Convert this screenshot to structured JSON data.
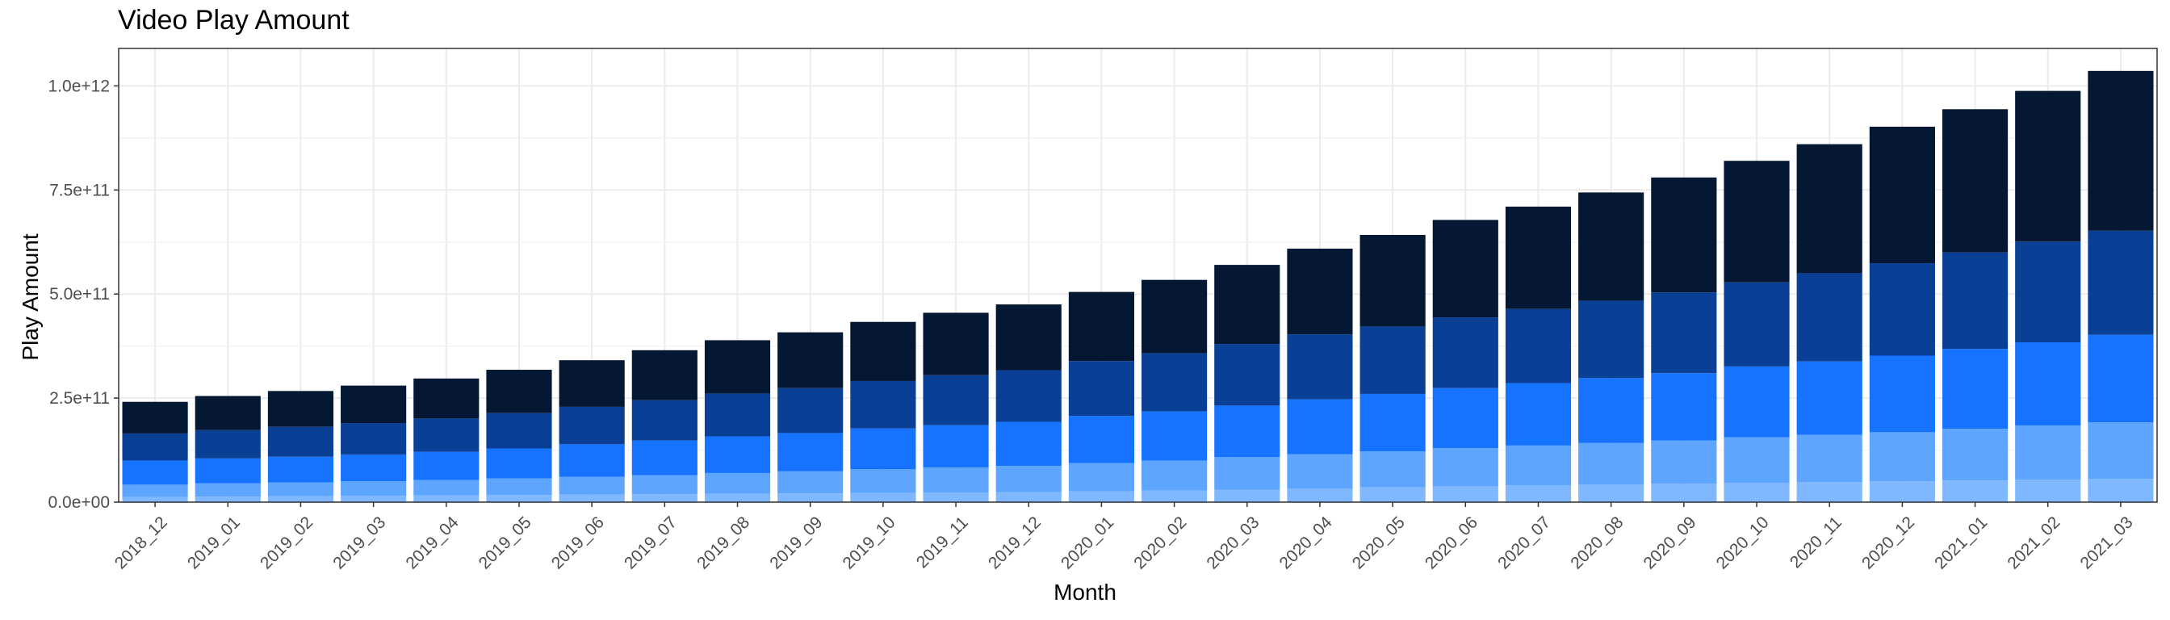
{
  "chart_data": {
    "type": "bar",
    "stacked": true,
    "title": "Video Play Amount",
    "xlabel": "Month",
    "ylabel": "Play Amount",
    "ylim": [
      0,
      1090000000000
    ],
    "yticks": [
      0,
      250000000000,
      500000000000,
      750000000000,
      1000000000000
    ],
    "ytick_labels": [
      "0.0e+00",
      "2.5e+11",
      "5.0e+11",
      "7.5e+11",
      "1.0e+12"
    ],
    "grid": true,
    "legend": "none",
    "categories": [
      "2018_12",
      "2019_01",
      "2019_02",
      "2019_03",
      "2019_04",
      "2019_05",
      "2019_06",
      "2019_07",
      "2019_08",
      "2019_09",
      "2019_10",
      "2019_11",
      "2019_12",
      "2020_01",
      "2020_02",
      "2020_03",
      "2020_04",
      "2020_05",
      "2020_06",
      "2020_07",
      "2020_08",
      "2020_09",
      "2020_10",
      "2020_11",
      "2020_12",
      "2021_01",
      "2021_02",
      "2021_03"
    ],
    "series": [
      {
        "color": "#7fb8ff",
        "values": [
          12,
          13,
          14,
          15,
          16,
          17,
          18,
          19,
          20,
          21,
          22,
          23,
          24,
          26,
          28,
          30,
          33,
          36,
          38,
          40,
          42,
          44,
          46,
          48,
          50,
          52,
          54,
          56
        ]
      },
      {
        "color": "#5ea5ff",
        "values": [
          30,
          32,
          33,
          35,
          37,
          40,
          43,
          46,
          50,
          53,
          57,
          60,
          63,
          68,
          72,
          78,
          82,
          86,
          92,
          96,
          100,
          104,
          110,
          114,
          118,
          124,
          130,
          136
        ]
      },
      {
        "color": "#1673ff",
        "values": [
          58,
          60,
          62,
          64,
          68,
          72,
          78,
          83,
          88,
          92,
          98,
          102,
          106,
          113,
          118,
          124,
          132,
          138,
          144,
          150,
          156,
          162,
          170,
          176,
          184,
          192,
          200,
          210
        ]
      },
      {
        "color": "#0a3f96",
        "values": [
          65,
          68,
          72,
          76,
          80,
          85,
          90,
          97,
          103,
          108,
          114,
          120,
          124,
          132,
          140,
          148,
          156,
          162,
          170,
          178,
          186,
          194,
          202,
          212,
          222,
          232,
          242,
          250
        ]
      },
      {
        "color": "#041833",
        "values": [
          76,
          82,
          86,
          90,
          96,
          104,
          112,
          120,
          128,
          134,
          142,
          150,
          158,
          166,
          176,
          190,
          206,
          220,
          234,
          246,
          260,
          276,
          292,
          310,
          328,
          344,
          362,
          384
        ]
      }
    ],
    "value_unit_multiplier": 1000000000
  }
}
